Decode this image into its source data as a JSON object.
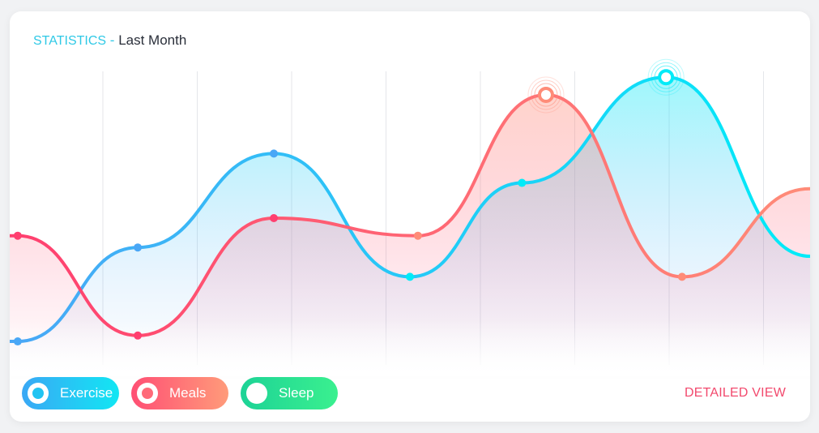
{
  "header": {
    "kicker": "STATISTICS",
    "separator": " - ",
    "title": "Last Month"
  },
  "legend": [
    {
      "label": "Exercise"
    },
    {
      "label": "Meals"
    },
    {
      "label": "Sleep"
    }
  ],
  "detailed_view_label": "DETAILED VIEW",
  "chart_data": {
    "type": "area",
    "ylim": [
      0,
      100
    ],
    "grid": "vertical",
    "gridlines": 8,
    "series": [
      {
        "name": "Exercise",
        "color_start": "#4aa7f6",
        "color_end": "#00ebf8",
        "x": [
          0.01,
          0.16,
          0.33,
          0.5,
          0.64,
          0.82
        ],
        "values": [
          8,
          40,
          72,
          30,
          62,
          98
        ],
        "highlight_index": 5
      },
      {
        "name": "Meals",
        "color_start": "#ff3f6f",
        "color_end": "#ff8c78",
        "x": [
          0.01,
          0.16,
          0.33,
          0.51,
          0.67,
          0.84
        ],
        "values": [
          44,
          10,
          50,
          44,
          92,
          30
        ],
        "highlight_index": 4
      }
    ]
  }
}
